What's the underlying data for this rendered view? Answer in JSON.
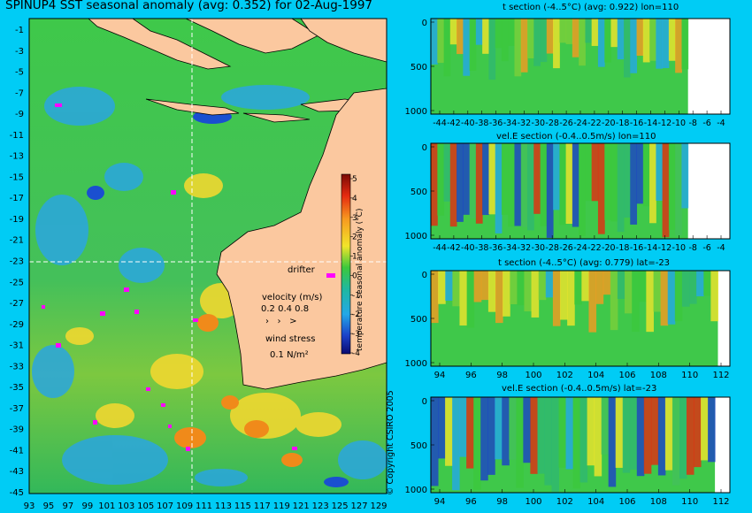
{
  "map": {
    "title": "SPINUP4 SST seasonal anomaly (avg: 0.352) for 02-Aug-1997",
    "lat_labels": [
      "-1",
      "-3",
      "-5",
      "-7",
      "-9",
      "-11",
      "-13",
      "-15",
      "-17",
      "-19",
      "-21",
      "-23",
      "-25",
      "-27",
      "-29",
      "-31",
      "-33",
      "-35",
      "-37",
      "-39",
      "-41",
      "-43",
      "-45"
    ],
    "lon_labels": [
      "93",
      "95",
      "97",
      "99",
      "101",
      "103",
      "105",
      "107",
      "109",
      "111",
      "113",
      "115",
      "117",
      "119",
      "121",
      "123",
      "125",
      "127",
      "129"
    ],
    "colorbar_label": "temperature seasonal anomaly (°C)",
    "colorbar_ticks": [
      "5",
      "4",
      "3",
      "2",
      "1",
      "0",
      "-1",
      "-2",
      "-3",
      "-4"
    ],
    "legend": {
      "drifter": "drifter",
      "velocity_title": "velocity (m/s)",
      "velocity_scale": "0.2 0.4 0.8",
      "wind_title": "wind stress",
      "wind_scale": "0.1 N/m²"
    },
    "copyright": "© Copyright CSIRO 2005"
  },
  "sections": [
    {
      "title": "t section (-4..5°C) (avg: 0.922) lon=110",
      "y_ticks": [
        "0",
        "500",
        "1000"
      ],
      "x_ticks": [
        "-44",
        "-42",
        "-40",
        "-38",
        "-36",
        "-34",
        "-32",
        "-30",
        "-28",
        "-26",
        "-24",
        "-22",
        "-20",
        "-18",
        "-16",
        "-14",
        "-12",
        "-10",
        "-8",
        "-6",
        "-4"
      ]
    },
    {
      "title": "vel.E section (-0.4..0.5m/s) lon=110",
      "y_ticks": [
        "0",
        "500",
        "1000"
      ],
      "x_ticks": [
        "-44",
        "-42",
        "-40",
        "-38",
        "-36",
        "-34",
        "-32",
        "-30",
        "-28",
        "-26",
        "-24",
        "-22",
        "-20",
        "-18",
        "-16",
        "-14",
        "-12",
        "-10",
        "-8",
        "-6",
        "-4"
      ]
    },
    {
      "title": "t section (-4..5°C) (avg: 0.779) lat=-23",
      "y_ticks": [
        "0",
        "500",
        "1000"
      ],
      "x_ticks": [
        "94",
        "96",
        "98",
        "100",
        "102",
        "104",
        "106",
        "108",
        "110",
        "112"
      ]
    },
    {
      "title": "vel.E section (-0.4..0.5m/s) lat=-23",
      "y_ticks": [
        "0",
        "500",
        "1000"
      ],
      "x_ticks": [
        "94",
        "96",
        "98",
        "100",
        "102",
        "104",
        "106",
        "108",
        "110",
        "112"
      ]
    }
  ],
  "colors": {
    "background": "#00ccf5",
    "land": "#fbc89f",
    "field_green": "#2fbf4a",
    "anomaly_warm": "#f39020",
    "anomaly_cold": "#1a57d8",
    "drifter": "#ff00ff"
  }
}
